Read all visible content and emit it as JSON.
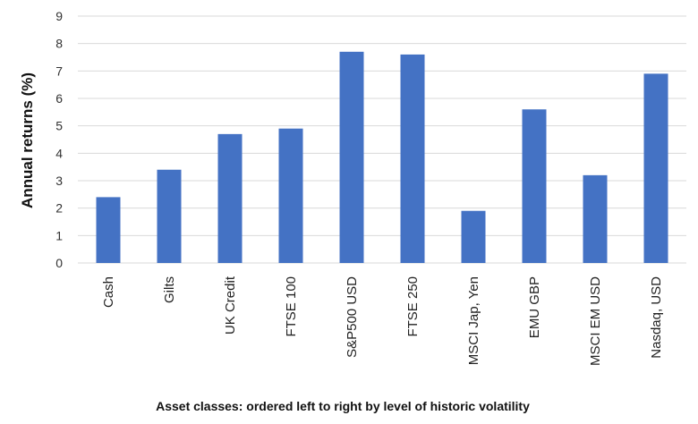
{
  "chart_data": {
    "type": "bar",
    "categories": [
      "Cash",
      "Gilts",
      "UK Credit",
      "FTSE 100",
      "S&P500 USD",
      "FTSE 250",
      "MSCI Jap, Yen",
      "EMU GBP",
      "MSCI EM USD",
      "Nasdaq, USD"
    ],
    "values": [
      2.4,
      3.4,
      4.7,
      4.9,
      7.7,
      7.6,
      1.9,
      5.6,
      3.2,
      6.9
    ],
    "title": "",
    "xlabel": "Asset classes: ordered left to right by level of historic volatility",
    "ylabel": "Annual returns (%)",
    "ylim": [
      0,
      9
    ],
    "yticks": [
      "0",
      "1",
      "2",
      "3",
      "4",
      "5",
      "6",
      "7",
      "8",
      "9"
    ],
    "grid": true,
    "legend": "none",
    "bar_color": "#4472C4",
    "grid_color": "#D9D9D9"
  }
}
